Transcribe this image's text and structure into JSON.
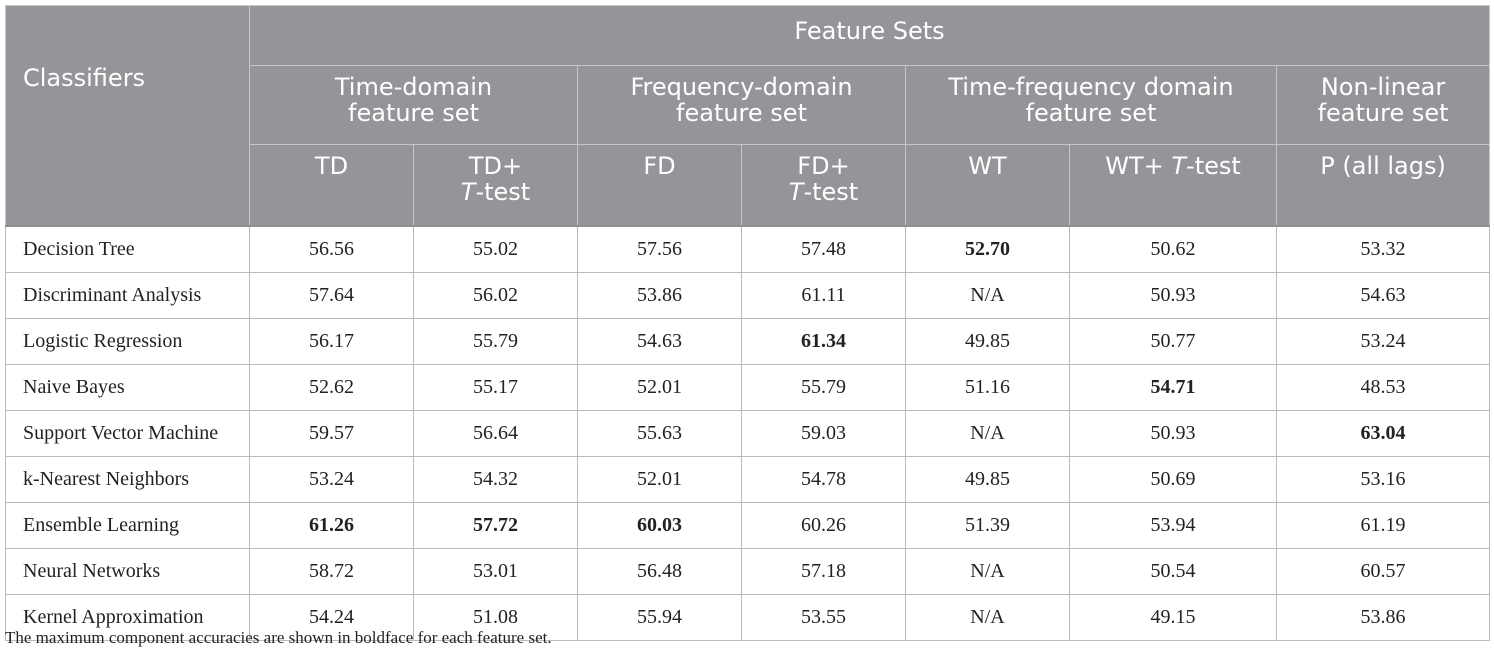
{
  "header": {
    "classifiers": "Classifiers",
    "feature_sets": "Feature Sets",
    "groups": [
      {
        "line1": "Time-domain",
        "line2": "feature set"
      },
      {
        "line1": "Frequency-domain",
        "line2": "feature set"
      },
      {
        "line1": "Time-frequency domain",
        "line2": "feature set"
      },
      {
        "line1": "Non-linear",
        "line2": "feature set"
      }
    ],
    "subs": {
      "td": "TD",
      "td_t_prefix": "TD+",
      "fd": "FD",
      "fd_t_prefix": "FD+",
      "wt": "WT",
      "wt_t_prefix": "WT+",
      "t_letter": "T",
      "t_suffix": "-test",
      "p": "P (all lags)"
    }
  },
  "rows": [
    {
      "name": "Decision Tree",
      "values": [
        "56.56",
        "55.02",
        "57.56",
        "57.48",
        "52.70",
        "50.62",
        "53.32"
      ]
    },
    {
      "name": "Discriminant Analysis",
      "values": [
        "57.64",
        "56.02",
        "53.86",
        "61.11",
        "N/A",
        "50.93",
        "54.63"
      ]
    },
    {
      "name": "Logistic Regression",
      "values": [
        "56.17",
        "55.79",
        "54.63",
        "61.34",
        "49.85",
        "50.77",
        "53.24"
      ]
    },
    {
      "name": "Naive Bayes",
      "values": [
        "52.62",
        "55.17",
        "52.01",
        "55.79",
        "51.16",
        "54.71",
        "48.53"
      ]
    },
    {
      "name": "Support Vector Machine",
      "values": [
        "59.57",
        "56.64",
        "55.63",
        "59.03",
        "N/A",
        "50.93",
        "63.04"
      ]
    },
    {
      "name": "k-Nearest Neighbors",
      "values": [
        "53.24",
        "54.32",
        "52.01",
        "54.78",
        "49.85",
        "50.69",
        "53.16"
      ]
    },
    {
      "name": "Ensemble Learning",
      "values": [
        "61.26",
        "57.72",
        "60.03",
        "60.26",
        "51.39",
        "53.94",
        "61.19"
      ]
    },
    {
      "name": "Neural Networks",
      "values": [
        "58.72",
        "53.01",
        "56.48",
        "57.18",
        "N/A",
        "50.54",
        "60.57"
      ]
    },
    {
      "name": "Kernel Approximation",
      "values": [
        "54.24",
        "51.08",
        "55.94",
        "53.55",
        "N/A",
        "49.15",
        "53.86"
      ]
    }
  ],
  "footnote": "The maximum component accuracies are shown in boldface for each feature set."
}
